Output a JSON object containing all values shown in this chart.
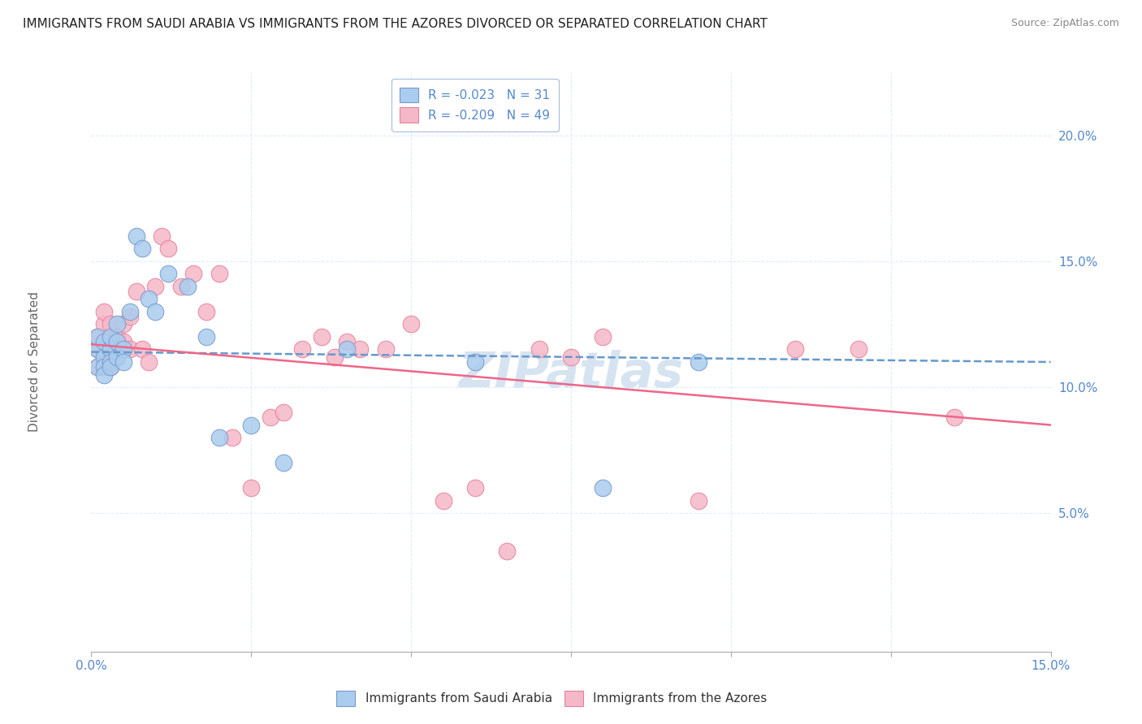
{
  "title": "IMMIGRANTS FROM SAUDI ARABIA VS IMMIGRANTS FROM THE AZORES DIVORCED OR SEPARATED CORRELATION CHART",
  "source": "Source: ZipAtlas.com",
  "ylabel": "Divorced or Separated",
  "xlim": [
    0.0,
    0.15
  ],
  "ylim": [
    -0.005,
    0.225
  ],
  "xticks": [
    0.0,
    0.025,
    0.05,
    0.075,
    0.1,
    0.125,
    0.15
  ],
  "yticks": [
    0.05,
    0.1,
    0.15,
    0.2
  ],
  "ytick_labels": [
    "5.0%",
    "10.0%",
    "15.0%",
    "20.0%"
  ],
  "xtick_labels_show": [
    "0.0%",
    "15.0%"
  ],
  "legend_label1": "R = -0.023   N = 31",
  "legend_label2": "R = -0.209   N = 49",
  "bottom_label1": "Immigrants from Saudi Arabia",
  "bottom_label2": "Immigrants from the Azores",
  "color_blue": "#aaccee",
  "color_pink": "#f5b8c8",
  "color_blue_edge": "#7799cc",
  "color_pink_edge": "#e88099",
  "color_line_blue": "#6699cc",
  "color_line_pink": "#ee6688",
  "watermark_color": "#c5d8ec",
  "grid_color": "#ddeeff",
  "title_color": "#222222",
  "axis_label_color": "#5588cc",
  "ylabel_color": "#666666",
  "saudi_x": [
    0.001,
    0.001,
    0.001,
    0.002,
    0.002,
    0.002,
    0.002,
    0.003,
    0.003,
    0.003,
    0.003,
    0.004,
    0.004,
    0.004,
    0.005,
    0.005,
    0.006,
    0.007,
    0.008,
    0.009,
    0.01,
    0.012,
    0.015,
    0.018,
    0.02,
    0.025,
    0.03,
    0.04,
    0.06,
    0.08,
    0.095
  ],
  "saudi_y": [
    0.115,
    0.108,
    0.12,
    0.112,
    0.118,
    0.108,
    0.105,
    0.115,
    0.12,
    0.11,
    0.108,
    0.112,
    0.118,
    0.125,
    0.115,
    0.11,
    0.13,
    0.16,
    0.155,
    0.135,
    0.13,
    0.145,
    0.14,
    0.12,
    0.08,
    0.085,
    0.07,
    0.115,
    0.11,
    0.06,
    0.11
  ],
  "azores_x": [
    0.001,
    0.001,
    0.001,
    0.002,
    0.002,
    0.002,
    0.002,
    0.003,
    0.003,
    0.003,
    0.003,
    0.004,
    0.004,
    0.004,
    0.005,
    0.005,
    0.006,
    0.006,
    0.007,
    0.008,
    0.009,
    0.01,
    0.011,
    0.012,
    0.014,
    0.016,
    0.018,
    0.02,
    0.022,
    0.025,
    0.028,
    0.03,
    0.033,
    0.036,
    0.038,
    0.04,
    0.042,
    0.046,
    0.05,
    0.055,
    0.06,
    0.065,
    0.07,
    0.075,
    0.08,
    0.095,
    0.11,
    0.12,
    0.135
  ],
  "azores_y": [
    0.115,
    0.12,
    0.108,
    0.125,
    0.118,
    0.112,
    0.13,
    0.108,
    0.118,
    0.125,
    0.115,
    0.112,
    0.12,
    0.115,
    0.125,
    0.118,
    0.115,
    0.128,
    0.138,
    0.115,
    0.11,
    0.14,
    0.16,
    0.155,
    0.14,
    0.145,
    0.13,
    0.145,
    0.08,
    0.06,
    0.088,
    0.09,
    0.115,
    0.12,
    0.112,
    0.118,
    0.115,
    0.115,
    0.125,
    0.055,
    0.06,
    0.035,
    0.115,
    0.112,
    0.12,
    0.055,
    0.115,
    0.115,
    0.088
  ],
  "trend_saudi_x0": 0.0,
  "trend_saudi_x1": 0.15,
  "trend_saudi_y0": 0.114,
  "trend_saudi_y1": 0.11,
  "trend_azores_x0": 0.0,
  "trend_azores_x1": 0.15,
  "trend_azores_y0": 0.117,
  "trend_azores_y1": 0.085
}
